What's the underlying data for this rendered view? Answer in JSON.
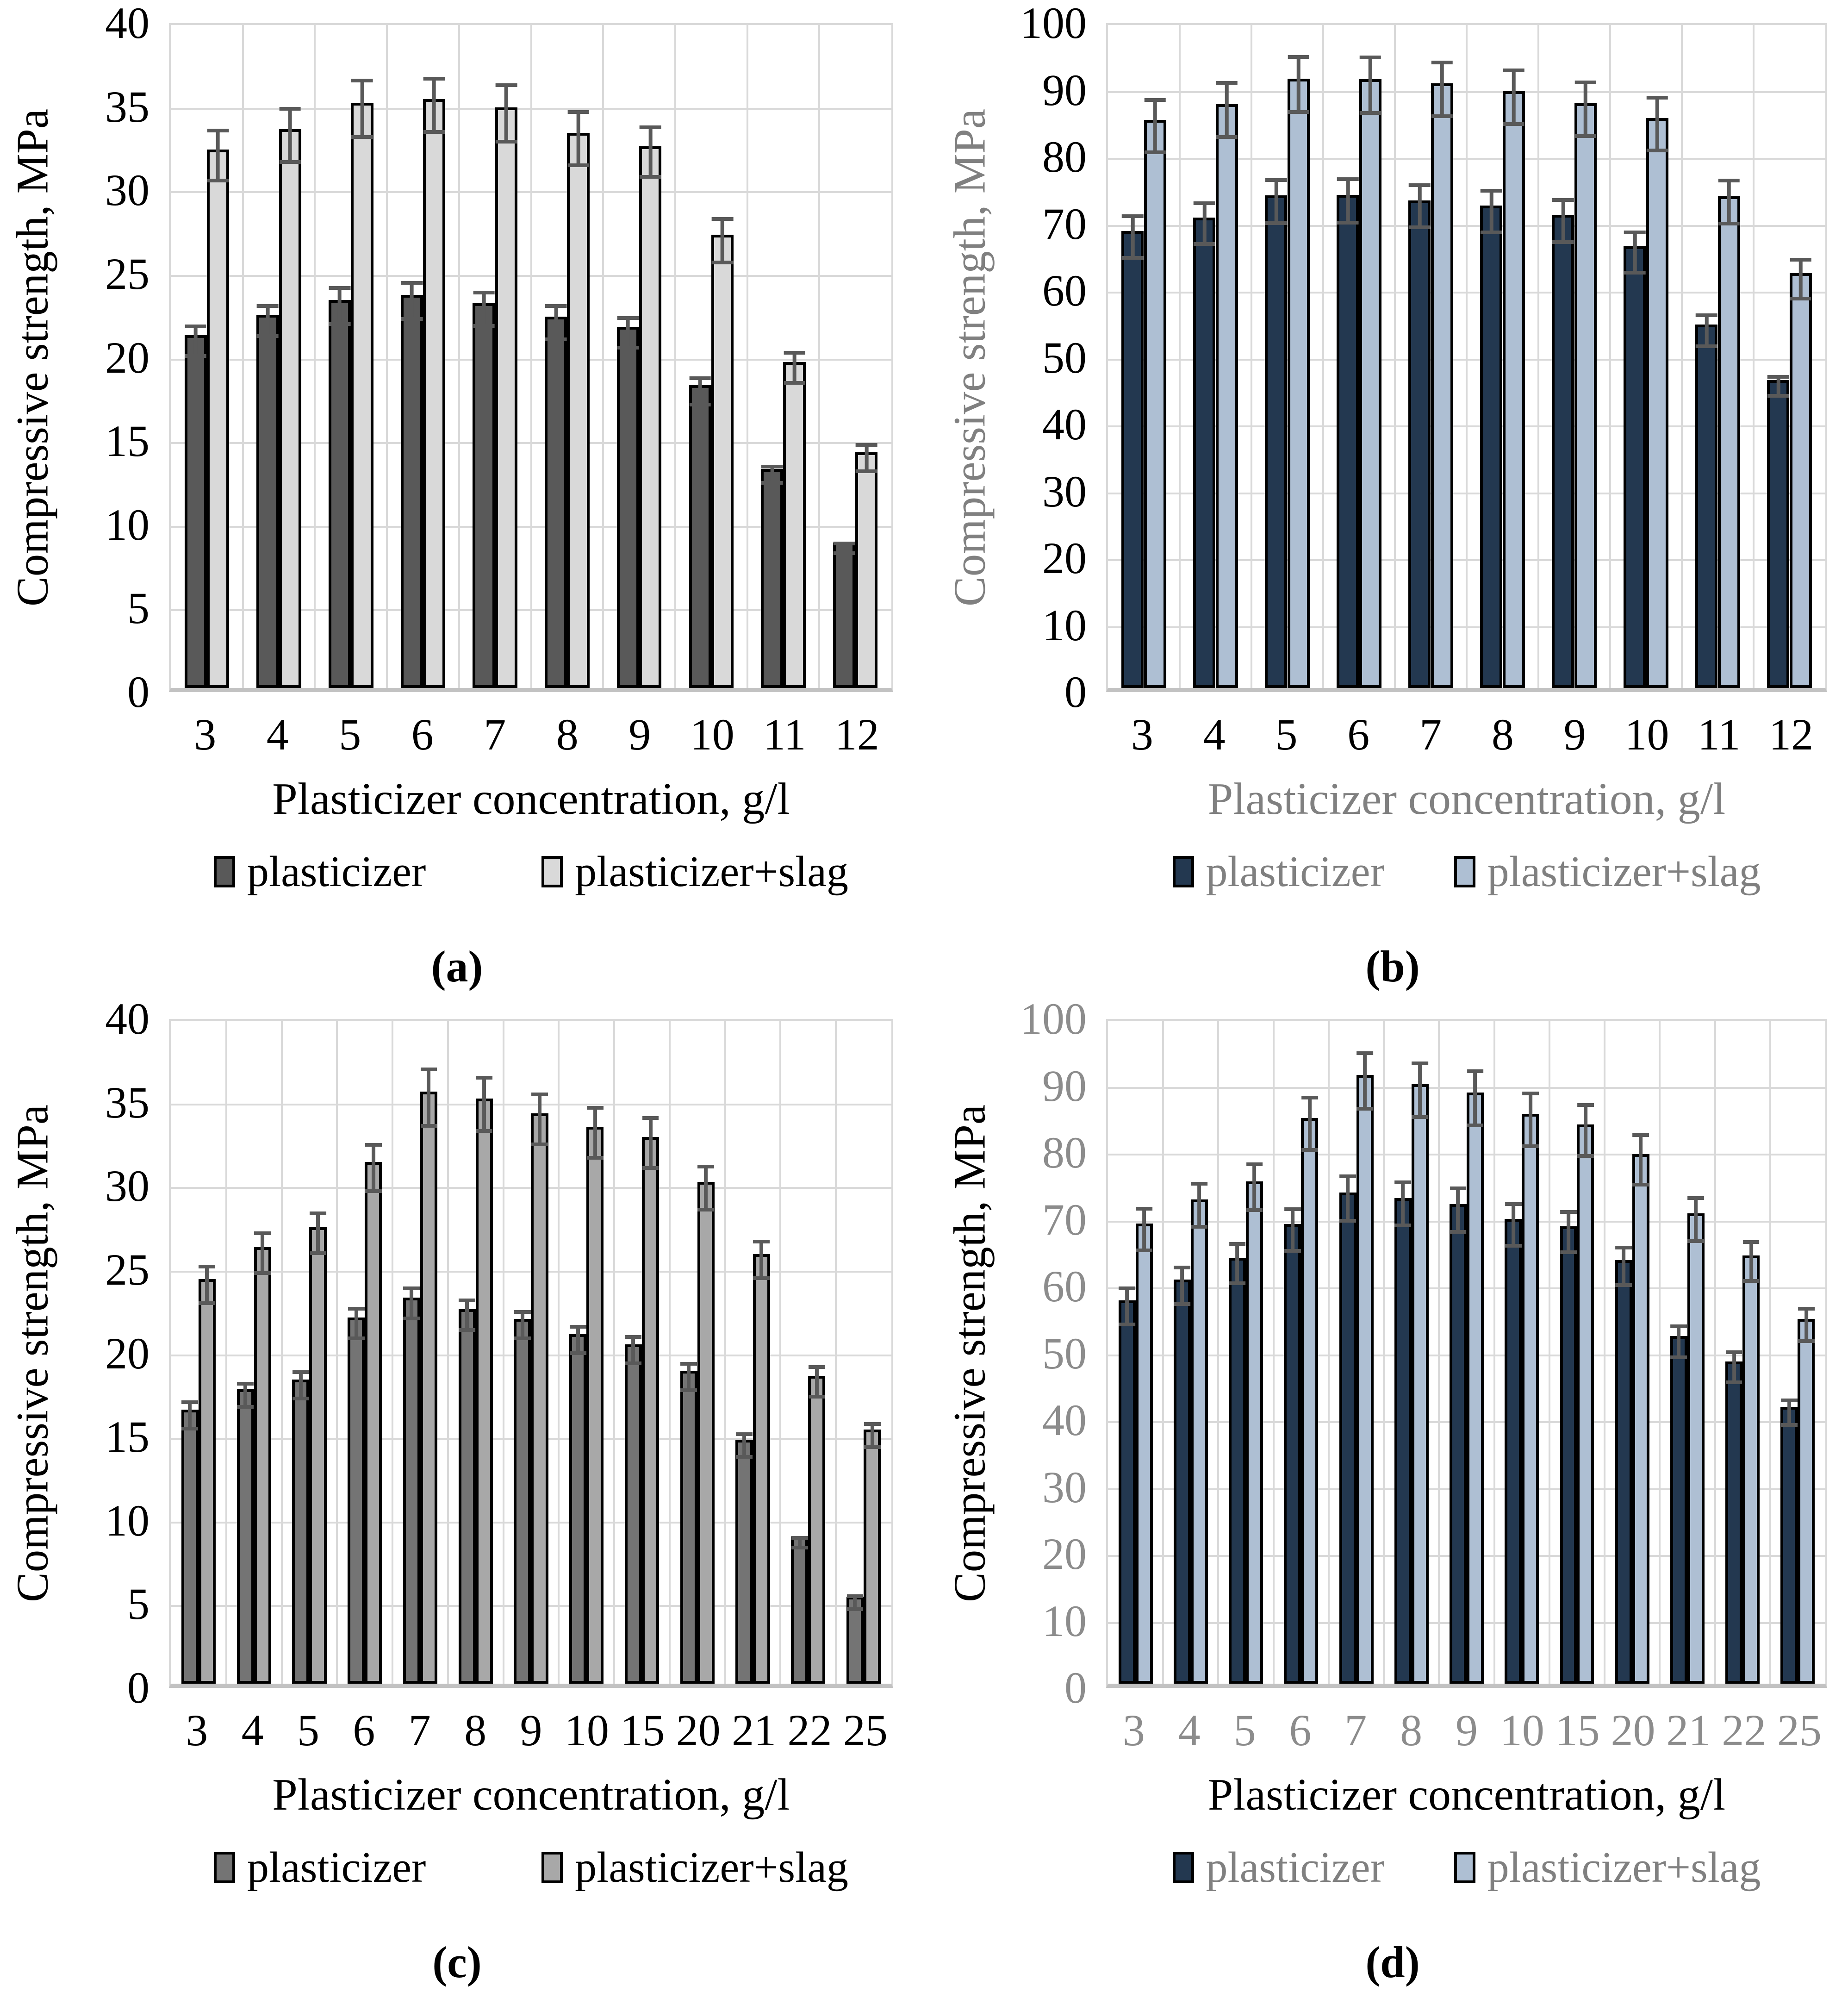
{
  "error_bar_color": "#595959",
  "grid_color": "#D9D9D9",
  "chart_data": [
    {
      "id": "a",
      "type": "bar",
      "caption": "(a)",
      "ylabel": "Compressive strength, MPa",
      "xlabel": "Plasticizer concentration, g/l",
      "ylim": [
        0,
        40
      ],
      "ytick_step": 5,
      "grid": true,
      "legend_position": "bottom",
      "categories": [
        "3",
        "4",
        "5",
        "6",
        "7",
        "8",
        "9",
        "10",
        "11",
        "12"
      ],
      "series": [
        {
          "name": "plasticizer",
          "color": "#595959",
          "values": [
            21.1,
            22.3,
            23.2,
            23.5,
            23.0,
            22.2,
            21.6,
            18.1,
            13.1,
            8.7
          ],
          "errors": [
            1.0,
            1.0,
            1.2,
            1.2,
            1.1,
            1.1,
            1.0,
            0.9,
            0.6,
            0.4
          ]
        },
        {
          "name": "plasticizer+slag",
          "color": "#D9D9D9",
          "values": [
            32.2,
            33.4,
            35.0,
            35.2,
            34.7,
            33.2,
            32.4,
            27.1,
            19.5,
            14.1
          ],
          "errors": [
            1.6,
            1.7,
            1.8,
            1.7,
            1.8,
            1.7,
            1.6,
            1.4,
            1.0,
            0.9
          ]
        }
      ],
      "text_colors": {
        "yticks": "#000000",
        "ylabel": "#000000",
        "xticks": "#000000",
        "xlabel": "#000000",
        "legend": "#000000"
      }
    },
    {
      "id": "b",
      "type": "bar",
      "caption": "(b)",
      "ylabel": "Compressive strength, MPa",
      "xlabel": "Plasticizer concentration, g/l",
      "ylim": [
        0,
        100
      ],
      "ytick_step": 10,
      "grid": true,
      "legend_position": "bottom",
      "categories": [
        "3",
        "4",
        "5",
        "6",
        "7",
        "8",
        "9",
        "10",
        "11",
        "12"
      ],
      "series": [
        {
          "name": "plasticizer",
          "color": "#233850",
          "values": [
            68.3,
            70.3,
            73.6,
            73.7,
            72.9,
            72.1,
            70.7,
            66.0,
            54.3,
            46.0
          ],
          "errors": [
            3.4,
            3.3,
            3.5,
            3.5,
            3.4,
            3.4,
            3.4,
            3.3,
            2.6,
            1.7
          ]
        },
        {
          "name": "plasticizer+slag",
          "color": "#AEBFD3",
          "values": [
            84.9,
            87.3,
            91.1,
            91.0,
            90.4,
            89.2,
            87.4,
            85.2,
            73.5,
            62.0
          ],
          "errors": [
            4.2,
            4.3,
            4.4,
            4.4,
            4.3,
            4.3,
            4.3,
            4.2,
            3.5,
            3.2
          ]
        }
      ],
      "text_colors": {
        "yticks": "#000000",
        "ylabel": "#808080",
        "xticks": "#000000",
        "xlabel": "#808080",
        "legend": "#808080"
      }
    },
    {
      "id": "c",
      "type": "bar",
      "caption": "(c)",
      "ylabel": "Compressive strength, MPa",
      "xlabel": "Plasticizer concentration, g/l",
      "ylim": [
        0,
        40
      ],
      "ytick_step": 5,
      "grid": true,
      "legend_position": "bottom",
      "categories": [
        "3",
        "4",
        "5",
        "6",
        "7",
        "8",
        "9",
        "10",
        "15",
        "20",
        "21",
        "22",
        "25"
      ],
      "series": [
        {
          "name": "plasticizer",
          "color": "#747474",
          "values": [
            16.4,
            17.6,
            18.2,
            21.9,
            23.1,
            22.4,
            21.8,
            20.9,
            20.3,
            18.7,
            14.6,
            8.8,
            5.2
          ],
          "errors": [
            0.9,
            0.8,
            0.9,
            1.0,
            1.0,
            1.0,
            0.9,
            0.9,
            0.9,
            0.9,
            0.8,
            0.4,
            0.5
          ]
        },
        {
          "name": "plasticizer+slag",
          "color": "#A8A8A8",
          "values": [
            24.2,
            26.1,
            27.3,
            31.2,
            35.4,
            35.0,
            34.1,
            33.3,
            32.7,
            30.0,
            25.7,
            18.4,
            15.2
          ],
          "errors": [
            1.2,
            1.3,
            1.3,
            1.5,
            1.8,
            1.7,
            1.6,
            1.6,
            1.6,
            1.4,
            1.2,
            1.0,
            0.8
          ]
        }
      ],
      "text_colors": {
        "yticks": "#000000",
        "ylabel": "#000000",
        "xticks": "#000000",
        "xlabel": "#000000",
        "legend": "#000000"
      }
    },
    {
      "id": "d",
      "type": "bar",
      "caption": "(d)",
      "ylabel": "Compressive strength, MPa",
      "xlabel": "Plasticizer concentration, g/l",
      "ylim": [
        0,
        100
      ],
      "ytick_step": 10,
      "grid": true,
      "legend_position": "bottom",
      "categories": [
        "3",
        "4",
        "5",
        "6",
        "7",
        "8",
        "9",
        "10",
        "15",
        "20",
        "21",
        "22",
        "25"
      ],
      "series": [
        {
          "name": "plasticizer",
          "color": "#233850",
          "values": [
            57.3,
            60.4,
            63.7,
            68.7,
            73.4,
            72.6,
            71.7,
            69.5,
            68.4,
            63.3,
            52.0,
            48.2,
            41.4
          ],
          "errors": [
            3.0,
            3.0,
            3.2,
            3.4,
            3.6,
            3.5,
            3.5,
            3.4,
            3.3,
            3.1,
            2.6,
            2.5,
            2.1
          ]
        },
        {
          "name": "plasticizer+slag",
          "color": "#AEBFD3",
          "values": [
            68.8,
            72.4,
            75.1,
            84.6,
            91.0,
            89.6,
            88.4,
            85.2,
            83.6,
            79.2,
            70.3,
            64.0,
            54.5
          ],
          "errors": [
            3.4,
            3.5,
            3.7,
            4.2,
            4.4,
            4.3,
            4.3,
            4.2,
            4.1,
            4.0,
            3.5,
            3.2,
            2.7
          ]
        }
      ],
      "text_colors": {
        "yticks": "#8C8C8C",
        "ylabel": "#000000",
        "xticks": "#8C8C8C",
        "xlabel": "#000000",
        "legend": "#808080"
      }
    }
  ]
}
